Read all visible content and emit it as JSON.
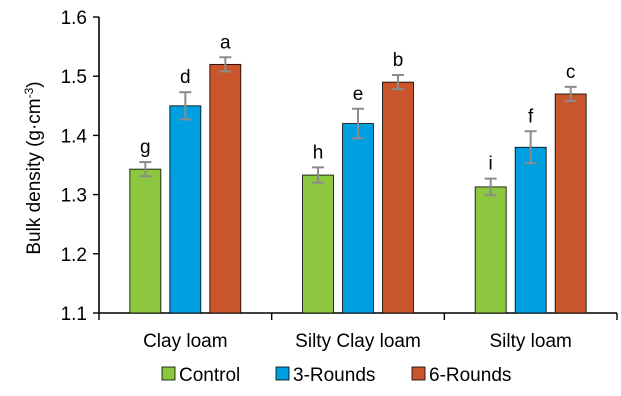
{
  "chart_data": {
    "type": "bar",
    "categories": [
      "Clay loam",
      "Silty Clay loam",
      "Silty loam"
    ],
    "series": [
      {
        "name": "Control",
        "color": "#8DC63F",
        "values": [
          1.343,
          1.333,
          1.313
        ],
        "errors": [
          0.012,
          0.013,
          0.014
        ],
        "labels": [
          "g",
          "h",
          "i"
        ]
      },
      {
        "name": "3-Rounds",
        "color": "#00A0E0",
        "values": [
          1.45,
          1.42,
          1.38
        ],
        "errors": [
          0.023,
          0.025,
          0.027
        ],
        "labels": [
          "d",
          "e",
          "f"
        ]
      },
      {
        "name": "6-Rounds",
        "color": "#C8552B",
        "values": [
          1.52,
          1.49,
          1.47
        ],
        "errors": [
          0.012,
          0.012,
          0.012
        ],
        "labels": [
          "a",
          "b",
          "c"
        ]
      }
    ],
    "ylabel": {
      "main": "Bulk density (g·cm",
      "sup": "-3",
      "close": ")"
    },
    "xlabel": "",
    "ylim": [
      1.1,
      1.6
    ],
    "yticks": [
      "1.1",
      "1.2",
      "1.3",
      "1.4",
      "1.5",
      "1.6"
    ],
    "grid": false,
    "legend_position": "bottom"
  }
}
